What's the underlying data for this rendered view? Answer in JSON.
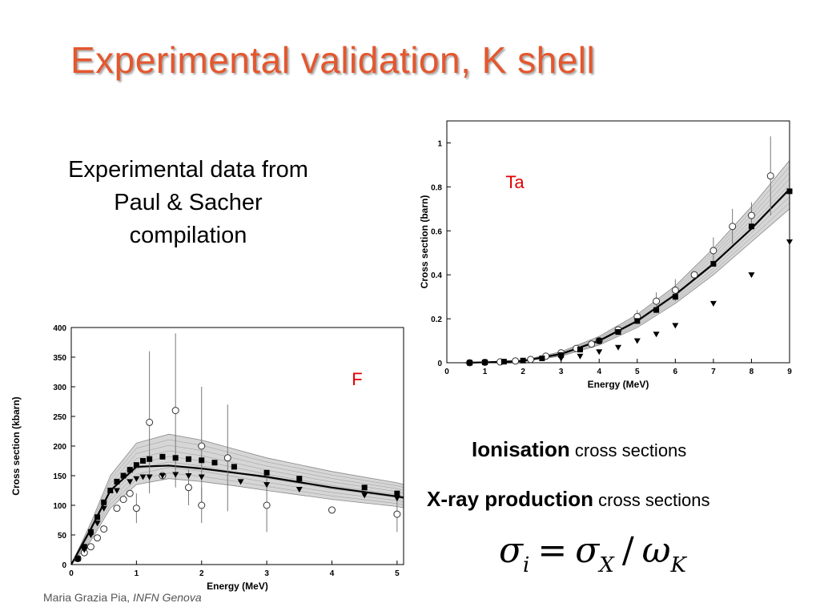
{
  "slide": {
    "title": "Experimental validation, K shell",
    "source_lines": [
      "Experimental data from",
      "Paul & Sacher",
      "compilation"
    ],
    "ionisation_bold": "Ionisation",
    "ionisation_rest": "cross sections",
    "xray_bold": "X-ray production",
    "xray_rest": "cross sections",
    "formula": {
      "sigma_i": "σ",
      "i": "i",
      "equals": "=",
      "sigma_x": "σ",
      "x": "X",
      "slash": "/",
      "omega": "ω",
      "k": "K"
    },
    "footer_author": "Maria Grazia Pia,",
    "footer_affiliation": "INFN Genova"
  },
  "chart_data": [
    {
      "id": "tantalum",
      "type": "scatter",
      "element_label": "Ta",
      "xlabel": "Energy (MeV)",
      "ylabel": "Cross section (barn)",
      "xlim": [
        0,
        9
      ],
      "ylim": [
        0,
        1.1
      ],
      "xticks": [
        0,
        1,
        2,
        3,
        4,
        5,
        6,
        7,
        8,
        9
      ],
      "yticks": [
        0,
        0.2,
        0.4,
        0.6,
        0.8,
        1
      ],
      "grid": false,
      "series": [
        {
          "marker": "open-circle",
          "x": [
            0.6,
            1.0,
            1.4,
            1.8,
            2.2,
            2.6,
            3.0,
            3.4,
            3.8,
            4.0,
            4.5,
            5.0,
            5.5,
            6.0,
            6.5,
            7.0,
            7.5,
            8.0,
            8.5
          ],
          "y": [
            0.0,
            0.002,
            0.004,
            0.008,
            0.015,
            0.03,
            0.045,
            0.065,
            0.085,
            0.1,
            0.15,
            0.21,
            0.28,
            0.33,
            0.4,
            0.51,
            0.62,
            0.67,
            0.85
          ],
          "err": [
            0,
            0,
            0,
            0,
            0,
            0,
            0,
            0,
            0,
            0,
            0,
            0.03,
            0.04,
            0.05,
            0,
            0.06,
            0.08,
            0.06,
            0.18
          ]
        },
        {
          "marker": "filled-square",
          "x": [
            0.6,
            1.0,
            1.5,
            2.0,
            2.5,
            3.0,
            3.5,
            4.0,
            4.5,
            5.0,
            5.5,
            6.0,
            7.0,
            8.0,
            9.0
          ],
          "y": [
            0.0,
            0.002,
            0.005,
            0.01,
            0.02,
            0.035,
            0.06,
            0.1,
            0.14,
            0.19,
            0.24,
            0.3,
            0.45,
            0.62,
            0.78
          ]
        },
        {
          "marker": "filled-triangle-down",
          "x": [
            3.0,
            3.5,
            4.0,
            4.5,
            5.0,
            5.5,
            6.0,
            7.0,
            8.0,
            9.0
          ],
          "y": [
            0.02,
            0.03,
            0.05,
            0.07,
            0.1,
            0.13,
            0.17,
            0.27,
            0.4,
            0.55
          ]
        }
      ],
      "model_curves": [
        {
          "x": [
            0.5,
            1,
            2,
            3,
            4,
            5,
            6,
            7,
            8,
            9
          ],
          "y": [
            0,
            0.002,
            0.008,
            0.04,
            0.1,
            0.19,
            0.31,
            0.45,
            0.61,
            0.79
          ]
        },
        {
          "x": [
            0.5,
            1,
            2,
            3,
            4,
            5,
            6,
            7,
            8,
            9
          ],
          "y": [
            0,
            0.003,
            0.012,
            0.05,
            0.12,
            0.22,
            0.35,
            0.52,
            0.71,
            0.92
          ]
        },
        {
          "x": [
            0.5,
            1,
            2,
            3,
            4,
            5,
            6,
            7,
            8,
            9
          ],
          "y": [
            0,
            0.002,
            0.006,
            0.03,
            0.08,
            0.16,
            0.27,
            0.4,
            0.55,
            0.7
          ]
        }
      ]
    },
    {
      "id": "fluorine",
      "type": "scatter",
      "element_label": "F",
      "xlabel": "Energy (MeV)",
      "ylabel": "Cross section (kbarn)",
      "xlim": [
        0,
        5.1
      ],
      "ylim": [
        0,
        400
      ],
      "xticks": [
        0,
        1,
        2,
        3,
        4,
        5
      ],
      "yticks": [
        0,
        50,
        100,
        150,
        200,
        250,
        300,
        350,
        400
      ],
      "grid": false,
      "series": [
        {
          "marker": "open-circle",
          "x": [
            0.1,
            0.2,
            0.3,
            0.4,
            0.5,
            0.7,
            0.8,
            0.9,
            1.0,
            1.2,
            1.4,
            1.6,
            1.8,
            2.0,
            2.0,
            2.4,
            3.0,
            4.0,
            5.0
          ],
          "y": [
            10,
            20,
            30,
            45,
            60,
            95,
            110,
            120,
            95,
            240,
            150,
            260,
            130,
            200,
            100,
            180,
            100,
            92,
            85
          ],
          "err": [
            0,
            0,
            0,
            0,
            0,
            0,
            0,
            0,
            25,
            120,
            0,
            130,
            30,
            100,
            30,
            90,
            45,
            0,
            30
          ]
        },
        {
          "marker": "filled-square",
          "x": [
            0.1,
            0.2,
            0.3,
            0.4,
            0.5,
            0.6,
            0.7,
            0.8,
            0.9,
            1.0,
            1.1,
            1.2,
            1.4,
            1.6,
            1.8,
            2.0,
            2.2,
            2.5,
            3.0,
            3.5,
            4.5,
            5.0
          ],
          "y": [
            10,
            30,
            55,
            80,
            105,
            125,
            140,
            150,
            160,
            168,
            175,
            178,
            182,
            180,
            178,
            176,
            172,
            165,
            155,
            145,
            130,
            120
          ]
        },
        {
          "marker": "filled-triangle-down",
          "x": [
            0.1,
            0.2,
            0.3,
            0.4,
            0.5,
            0.7,
            0.9,
            1.0,
            1.1,
            1.2,
            1.4,
            1.6,
            1.8,
            2.0,
            2.6,
            3.0,
            3.5,
            4.5,
            5.0
          ],
          "y": [
            10,
            25,
            50,
            70,
            95,
            125,
            140,
            145,
            148,
            148,
            150,
            152,
            150,
            148,
            140,
            135,
            127,
            117,
            112
          ]
        }
      ],
      "model_curves": [
        {
          "x": [
            0,
            0.3,
            0.6,
            1.0,
            1.5,
            2.0,
            2.5,
            3.0,
            4.0,
            5.0,
            5.1
          ],
          "y": [
            0,
            60,
            125,
            165,
            167,
            162,
            155,
            148,
            130,
            115,
            113
          ]
        },
        {
          "x": [
            0,
            0.3,
            0.6,
            1.0,
            1.5,
            2.0,
            2.5,
            3.0,
            4.0,
            5.0,
            5.1
          ],
          "y": [
            0,
            70,
            150,
            205,
            220,
            210,
            195,
            180,
            157,
            138,
            135
          ]
        },
        {
          "x": [
            0,
            0.3,
            0.6,
            1.0,
            1.5,
            2.0,
            2.5,
            3.0,
            4.0,
            5.0,
            5.1
          ],
          "y": [
            0,
            40,
            95,
            135,
            145,
            140,
            133,
            125,
            110,
            98,
            96
          ]
        }
      ]
    }
  ]
}
